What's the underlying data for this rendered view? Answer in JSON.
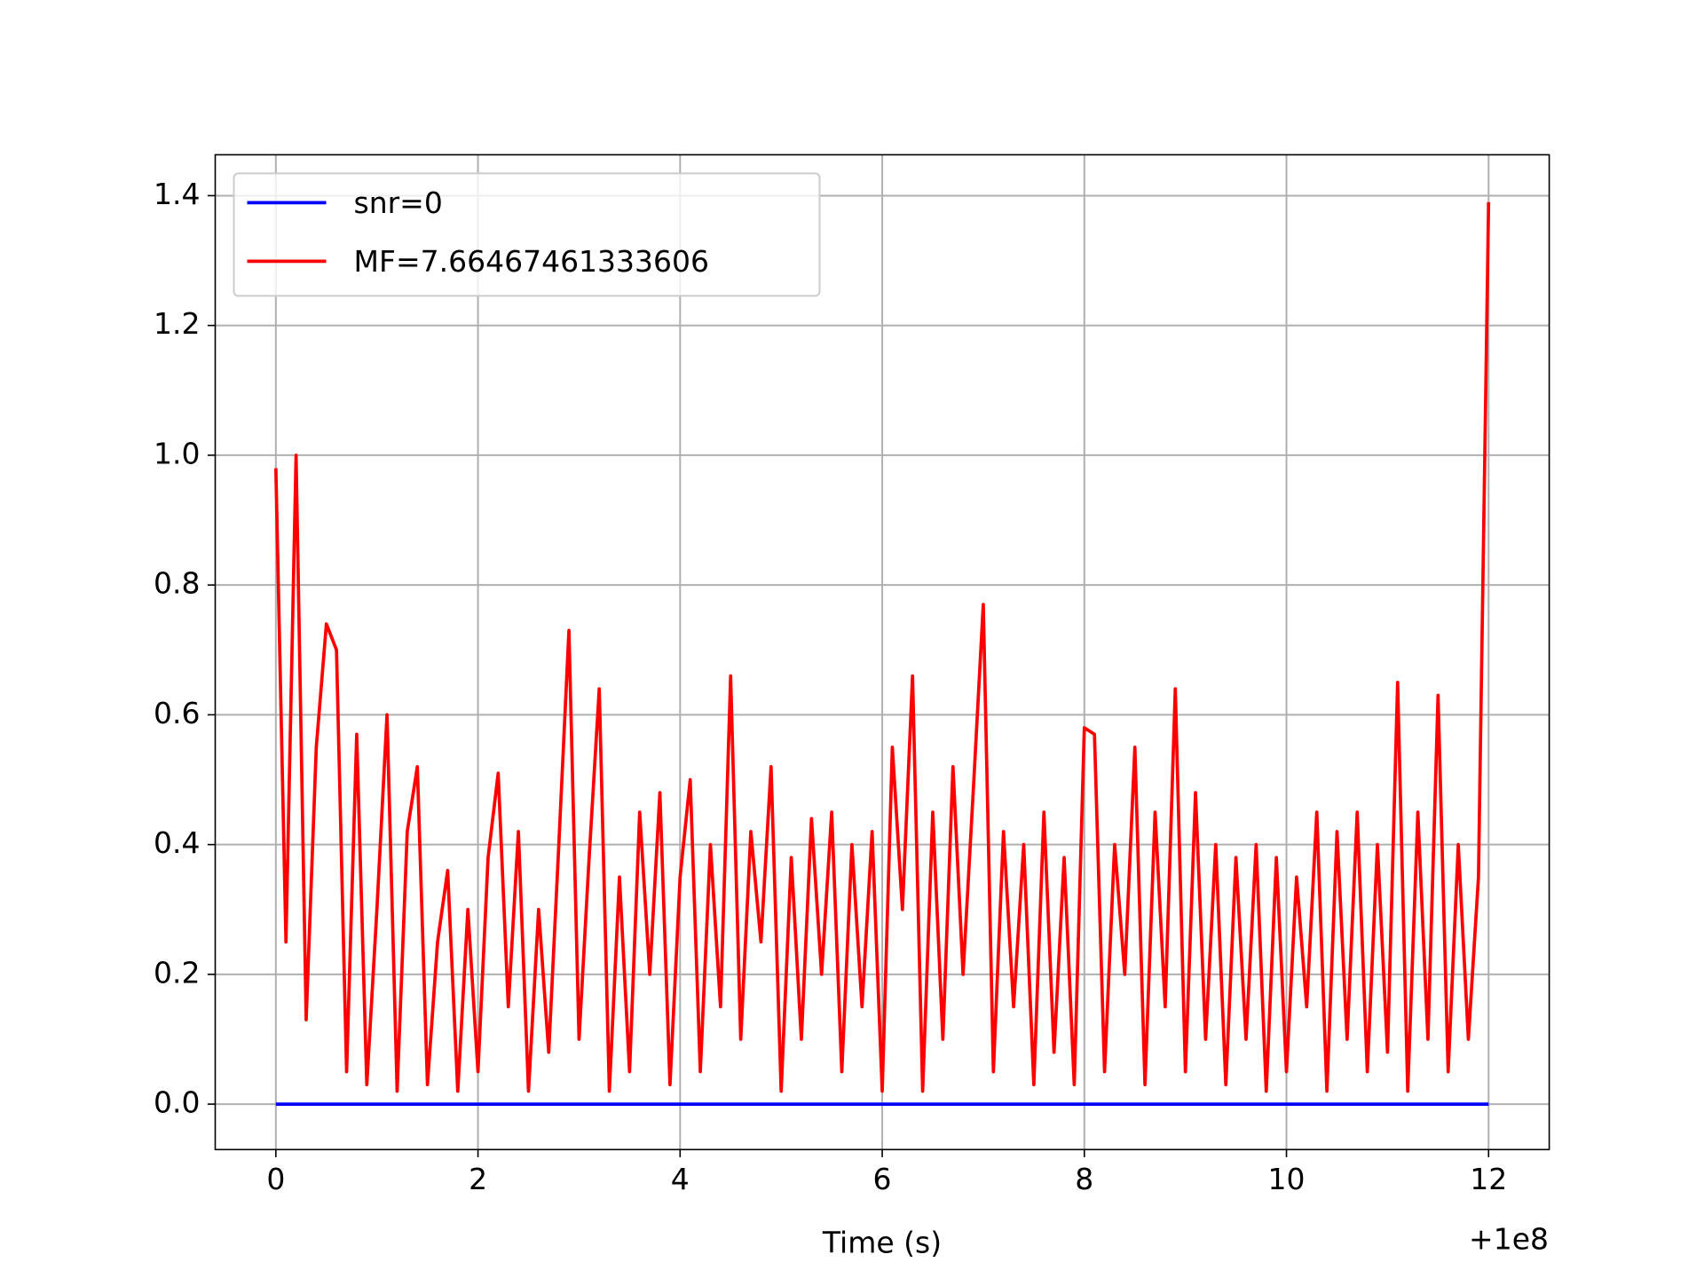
{
  "chart_data": {
    "type": "line",
    "xlabel": "Time (s)",
    "x_offset_label": "+1e8",
    "xlim": [
      -0.6,
      12.6
    ],
    "xticks": [
      0,
      2,
      4,
      6,
      8,
      10,
      12
    ],
    "ylim": [
      -0.07,
      1.463
    ],
    "yticks": [
      {
        "value": 0,
        "label": "0.0"
      },
      0.2,
      0.4,
      0.6,
      0.8,
      {
        "value": 1,
        "label": "1.0"
      },
      1.2,
      1.4
    ],
    "grid": true,
    "legend": "upper left",
    "series": [
      {
        "name": "snr=0",
        "color": "#0000ff",
        "x": [
          0,
          12
        ],
        "values": [
          0,
          0
        ]
      },
      {
        "name": "MF=7.66467461333606",
        "color": "#ff0000",
        "x": [
          0,
          0.1,
          0.2,
          0.3,
          0.4,
          0.5,
          0.6,
          0.7,
          0.8,
          0.9,
          1,
          1.1,
          1.2,
          1.3,
          1.4,
          1.5,
          1.6,
          1.7,
          1.8,
          1.9,
          2,
          2.1,
          2.2,
          2.3,
          2.4,
          2.5,
          2.6,
          2.7,
          2.8,
          2.9,
          3,
          3.1,
          3.2,
          3.3,
          3.4,
          3.5,
          3.6,
          3.7,
          3.8,
          3.9,
          4,
          4.1,
          4.2,
          4.3,
          4.4,
          4.5,
          4.6,
          4.7,
          4.8,
          4.9,
          5,
          5.1,
          5.2,
          5.3,
          5.4,
          5.5,
          5.6,
          5.7,
          5.8,
          5.9,
          6,
          6.1,
          6.2,
          6.3,
          6.4,
          6.5,
          6.6,
          6.7,
          6.8,
          6.9,
          7,
          7.1,
          7.2,
          7.3,
          7.4,
          7.5,
          7.6,
          7.7,
          7.8,
          7.9,
          8,
          8.1,
          8.2,
          8.3,
          8.4,
          8.5,
          8.6,
          8.7,
          8.8,
          8.9,
          9,
          9.1,
          9.2,
          9.3,
          9.4,
          9.5,
          9.6,
          9.7,
          9.8,
          9.9,
          10,
          10.1,
          10.2,
          10.3,
          10.4,
          10.5,
          10.6,
          10.7,
          10.8,
          10.9,
          11,
          11.1,
          11.2,
          11.3,
          11.4,
          11.5,
          11.6,
          11.7,
          11.8,
          11.9,
          12
        ],
        "values": [
          0.98,
          0.25,
          1.0,
          0.13,
          0.55,
          0.74,
          0.7,
          0.05,
          0.57,
          0.03,
          0.3,
          0.6,
          0.02,
          0.42,
          0.52,
          0.03,
          0.25,
          0.36,
          0.02,
          0.3,
          0.05,
          0.38,
          0.51,
          0.15,
          0.42,
          0.02,
          0.3,
          0.08,
          0.4,
          0.73,
          0.1,
          0.38,
          0.64,
          0.02,
          0.35,
          0.05,
          0.45,
          0.2,
          0.48,
          0.03,
          0.35,
          0.5,
          0.05,
          0.4,
          0.15,
          0.66,
          0.1,
          0.42,
          0.25,
          0.52,
          0.02,
          0.38,
          0.1,
          0.44,
          0.2,
          0.45,
          0.05,
          0.4,
          0.15,
          0.42,
          0.02,
          0.55,
          0.3,
          0.66,
          0.02,
          0.45,
          0.1,
          0.52,
          0.2,
          0.48,
          0.77,
          0.05,
          0.42,
          0.15,
          0.4,
          0.03,
          0.45,
          0.08,
          0.38,
          0.03,
          0.58,
          0.57,
          0.05,
          0.4,
          0.2,
          0.55,
          0.03,
          0.45,
          0.15,
          0.64,
          0.05,
          0.48,
          0.1,
          0.4,
          0.03,
          0.38,
          0.1,
          0.4,
          0.02,
          0.38,
          0.05,
          0.35,
          0.15,
          0.45,
          0.02,
          0.42,
          0.1,
          0.45,
          0.05,
          0.4,
          0.08,
          0.65,
          0.02,
          0.45,
          0.1,
          0.63,
          0.05,
          0.4,
          0.1,
          0.35,
          1.39
        ]
      }
    ]
  }
}
